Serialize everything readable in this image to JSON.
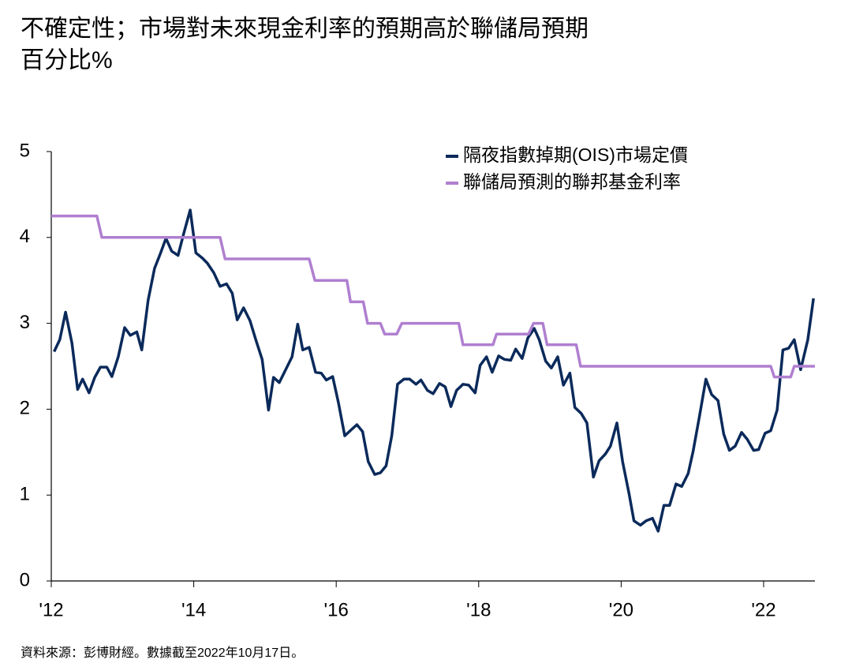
{
  "chart_data": {
    "type": "line",
    "title": "不確定性；市場對未來現金利率的預期高於聯儲局預期",
    "subtitle": "百分比%",
    "source": "資料來源：彭博財經。數據截至2022年10月17日。",
    "legend": "upper right",
    "grid": false,
    "xlim": [
      2012,
      2022.72
    ],
    "xticks": [
      {
        "value": 2012,
        "label": "'12"
      },
      {
        "value": 2014,
        "label": "'14"
      },
      {
        "value": 2016,
        "label": "'16"
      },
      {
        "value": 2018,
        "label": "'18"
      },
      {
        "value": 2020,
        "label": "'20"
      },
      {
        "value": 2022,
        "label": "'22"
      }
    ],
    "ylim": [
      0,
      5
    ],
    "yticks": [
      0,
      1,
      2,
      3,
      4,
      5
    ],
    "series": [
      {
        "name": "隔夜指數掉期(OIS)市場定價",
        "color": "#0b2a5b",
        "x": [
          2012.04,
          2012.12,
          2012.2,
          2012.29,
          2012.37,
          2012.44,
          2012.53,
          2012.61,
          2012.69,
          2012.78,
          2012.85,
          2012.94,
          2013.03,
          2013.11,
          2013.2,
          2013.27,
          2013.36,
          2013.45,
          2013.53,
          2013.61,
          2013.69,
          2013.78,
          2013.86,
          2013.95,
          2014.03,
          2014.12,
          2014.19,
          2014.28,
          2014.37,
          2014.46,
          2014.54,
          2014.61,
          2014.7,
          2014.79,
          2014.87,
          2014.96,
          2015.05,
          2015.12,
          2015.2,
          2015.29,
          2015.38,
          2015.46,
          2015.53,
          2015.62,
          2015.71,
          2015.79,
          2015.86,
          2015.95,
          2016.03,
          2016.12,
          2016.21,
          2016.29,
          2016.37,
          2016.45,
          2016.54,
          2016.62,
          2016.7,
          2016.78,
          2016.86,
          2016.95,
          2017.03,
          2017.12,
          2017.19,
          2017.28,
          2017.36,
          2017.45,
          2017.53,
          2017.61,
          2017.69,
          2017.78,
          2017.86,
          2017.95,
          2018.02,
          2018.11,
          2018.19,
          2018.28,
          2018.36,
          2018.45,
          2018.52,
          2018.61,
          2018.69,
          2018.78,
          2018.85,
          2018.94,
          2019.02,
          2019.11,
          2019.19,
          2019.28,
          2019.35,
          2019.44,
          2019.52,
          2019.61,
          2019.69,
          2019.78,
          2019.85,
          2019.94,
          2020.02,
          2020.11,
          2020.18,
          2020.27,
          2020.35,
          2020.44,
          2020.52,
          2020.6,
          2020.68,
          2020.77,
          2020.85,
          2020.94,
          2021.01,
          2021.1,
          2021.19,
          2021.27,
          2021.36,
          2021.44,
          2021.52,
          2021.6,
          2021.69,
          2021.77,
          2021.86,
          2021.93,
          2022.02,
          2022.1,
          2022.19,
          2022.27,
          2022.35,
          2022.43,
          2022.52,
          2022.62,
          2022.7
        ],
        "values": [
          2.67,
          2.81,
          3.13,
          2.77,
          2.23,
          2.35,
          2.19,
          2.37,
          2.49,
          2.49,
          2.38,
          2.61,
          2.95,
          2.86,
          2.9,
          2.69,
          3.27,
          3.64,
          3.81,
          3.99,
          3.84,
          3.79,
          4.05,
          4.32,
          3.82,
          3.76,
          3.7,
          3.59,
          3.43,
          3.46,
          3.35,
          3.04,
          3.18,
          3.03,
          2.81,
          2.58,
          1.99,
          2.37,
          2.31,
          2.46,
          2.61,
          2.99,
          2.69,
          2.72,
          2.43,
          2.42,
          2.34,
          2.38,
          2.08,
          1.69,
          1.76,
          1.82,
          1.74,
          1.39,
          1.24,
          1.26,
          1.34,
          1.69,
          2.29,
          2.35,
          2.35,
          2.29,
          2.34,
          2.22,
          2.18,
          2.3,
          2.26,
          2.03,
          2.22,
          2.29,
          2.28,
          2.19,
          2.51,
          2.61,
          2.43,
          2.62,
          2.58,
          2.57,
          2.7,
          2.59,
          2.83,
          2.94,
          2.81,
          2.56,
          2.48,
          2.61,
          2.28,
          2.42,
          2.02,
          1.95,
          1.84,
          1.21,
          1.4,
          1.48,
          1.57,
          1.84,
          1.39,
          1.02,
          0.7,
          0.65,
          0.7,
          0.73,
          0.58,
          0.88,
          0.88,
          1.13,
          1.1,
          1.25,
          1.51,
          1.92,
          2.35,
          2.17,
          2.1,
          1.71,
          1.52,
          1.57,
          1.73,
          1.65,
          1.52,
          1.53,
          1.72,
          1.75,
          1.99,
          2.69,
          2.71,
          2.81,
          2.46,
          2.81,
          3.29
        ]
      },
      {
        "name": "聯儲局預測的聯邦基金利率",
        "color": "#b07fd0",
        "x": [
          2012.0,
          2012.64,
          2012.71,
          2014.37,
          2014.44,
          2015.62,
          2015.7,
          2016.15,
          2016.2,
          2016.38,
          2016.44,
          2016.62,
          2016.68,
          2016.85,
          2016.92,
          2017.72,
          2017.78,
          2018.2,
          2018.25,
          2018.7,
          2018.77,
          2018.9,
          2018.96,
          2019.37,
          2019.43,
          2022.1,
          2022.15,
          2022.38,
          2022.43,
          2022.72
        ],
        "values": [
          4.25,
          4.25,
          4.0,
          4.0,
          3.75,
          3.75,
          3.5,
          3.5,
          3.25,
          3.25,
          3.0,
          3.0,
          2.875,
          2.875,
          3.0,
          3.0,
          2.75,
          2.75,
          2.875,
          2.875,
          3.0,
          3.0,
          2.75,
          2.75,
          2.5,
          2.5,
          2.375,
          2.375,
          2.5,
          2.5
        ]
      }
    ]
  }
}
